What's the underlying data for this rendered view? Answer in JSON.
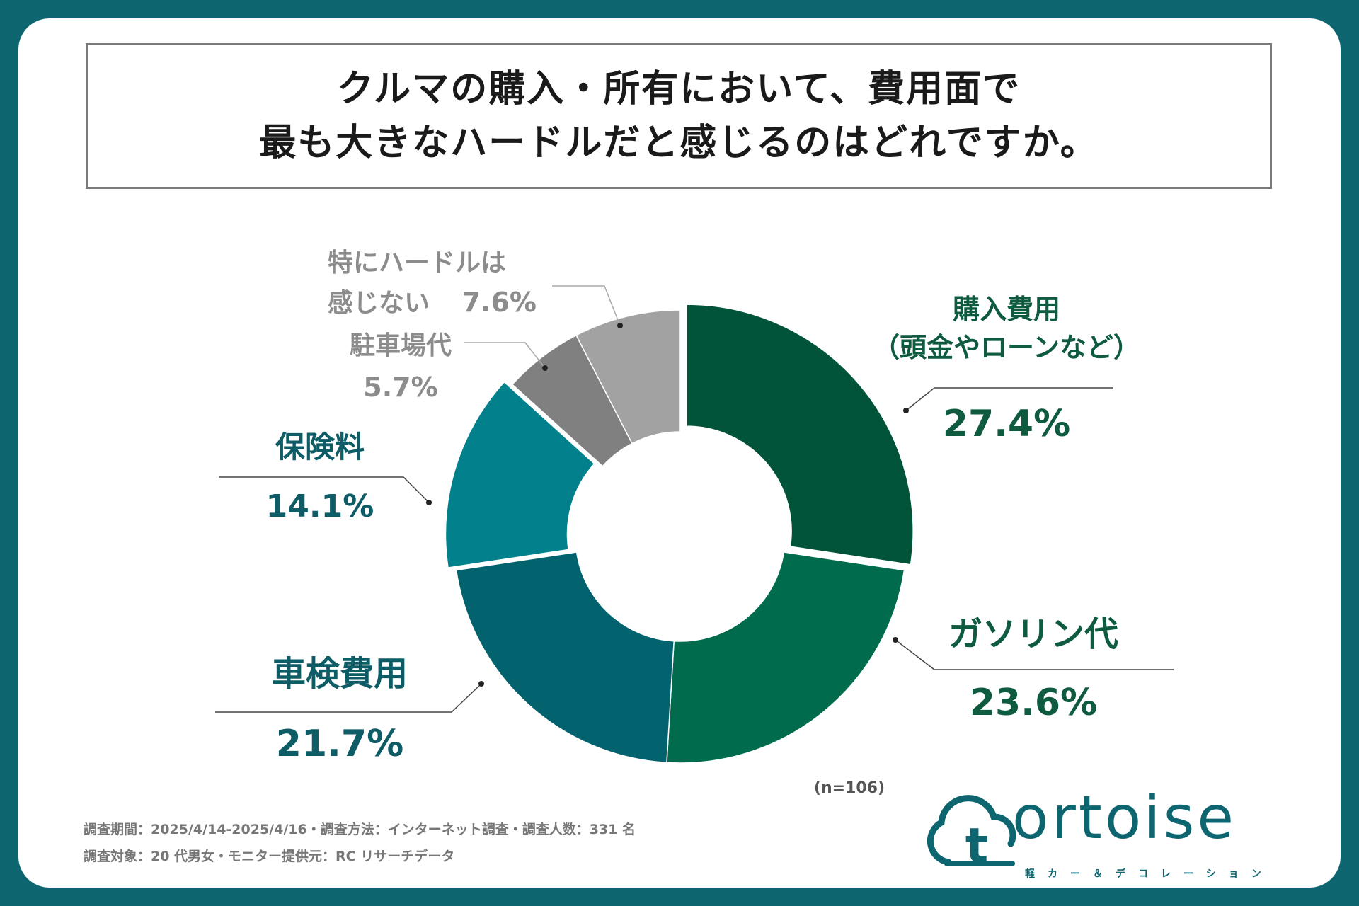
{
  "title": {
    "line1": "クルマの購入・所有において、費用面で",
    "line2": "最も大きなハードルだと感じるのはどれですか。"
  },
  "chart_data": {
    "type": "pie",
    "donut": true,
    "sample_size_label": "(n=106)",
    "slices": [
      {
        "name": "購入費用（頭金やローンなど）",
        "label_lines": [
          "購入費用",
          "（頭金やローンなど）"
        ],
        "value": 27.4,
        "value_label": "27.4%",
        "color": "#015439",
        "label_color": "#0e5b3f",
        "exploded": true
      },
      {
        "name": "ガソリン代",
        "label_lines": [
          "ガソリン代"
        ],
        "value": 23.6,
        "value_label": "23.6%",
        "color": "#016b4e",
        "label_color": "#0e5b3f",
        "exploded": false
      },
      {
        "name": "車検費用",
        "label_lines": [
          "車検費用"
        ],
        "value": 21.7,
        "value_label": "21.7%",
        "color": "#02636f",
        "label_color": "#0e5c66",
        "exploded": false
      },
      {
        "name": "保険料",
        "label_lines": [
          "保険料"
        ],
        "value": 14.1,
        "value_label": "14.1%",
        "color": "#02818c",
        "label_color": "#0e5c66",
        "exploded": true
      },
      {
        "name": "駐車場代",
        "label_lines": [
          "駐車場代"
        ],
        "value": 5.7,
        "value_label": "5.7%",
        "color": "#808080",
        "label_color": "#8c8c8c",
        "exploded": false
      },
      {
        "name": "特にハードルは感じない",
        "label_lines": [
          "特にハードルは",
          "感じない"
        ],
        "value": 7.6,
        "value_label": "7.6%",
        "color": "#a2a2a2",
        "label_color": "#8c8c8c",
        "exploded": false
      }
    ]
  },
  "notes": {
    "line1": "調査期間：2025/4/14-2025/4/16・調査方法：インターネット調査・調査人数：331 名",
    "line2": "調査対象：20 代男女・モニター提供元：RC リサーチデータ"
  },
  "logo": {
    "word": "ortoise",
    "mark": "t",
    "tagline": "軽カー＆デコレーション"
  },
  "colors": {
    "frame": "#0d6570",
    "logo": "#0d6570"
  }
}
